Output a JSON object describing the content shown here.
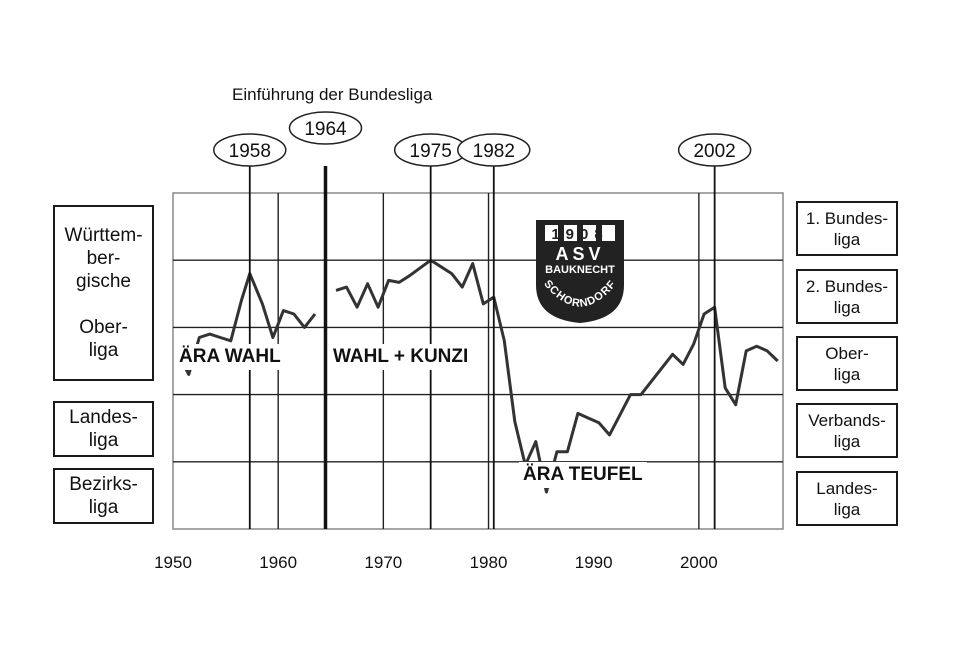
{
  "chart_data": {
    "type": "line",
    "xlim": [
      1950,
      2008
    ],
    "x_ticks": [
      1950,
      1960,
      1970,
      1980,
      1990,
      2000
    ],
    "x_tick_labels": [
      "1950",
      "1960",
      "1970",
      "1980",
      "1990",
      "2000"
    ],
    "grid": true,
    "series": [
      {
        "segments": [
          [
            [
              1950.5,
              2.6
            ],
            [
              1951.5,
              2.3
            ],
            [
              1952.5,
              2.85
            ],
            [
              1953.5,
              2.9
            ],
            [
              1954.5,
              2.85
            ],
            [
              1955.5,
              2.8
            ],
            [
              1956.5,
              3.4
            ],
            [
              1957.3,
              3.8
            ],
            [
              1958.5,
              3.35
            ],
            [
              1959.5,
              2.85
            ],
            [
              1960.5,
              3.25
            ],
            [
              1961.5,
              3.2
            ],
            [
              1962.5,
              3.0
            ],
            [
              1963.5,
              3.2
            ]
          ],
          [
            [
              1965.5,
              3.55
            ],
            [
              1966.5,
              3.6
            ],
            [
              1967.5,
              3.3
            ],
            [
              1968.5,
              3.65
            ],
            [
              1969.5,
              3.3
            ],
            [
              1970.5,
              3.7
            ],
            [
              1971.5,
              3.67
            ],
            [
              1972.5,
              3.77
            ],
            [
              1974.5,
              4.0
            ],
            [
              1976.5,
              3.8
            ],
            [
              1977.5,
              3.6
            ],
            [
              1978.5,
              3.95
            ],
            [
              1979.5,
              3.35
            ],
            [
              1980.5,
              3.45
            ],
            [
              1981.5,
              2.8
            ],
            [
              1982.5,
              1.6
            ],
            [
              1983.5,
              0.95
            ],
            [
              1984.5,
              1.3
            ],
            [
              1985.5,
              0.55
            ],
            [
              1986.5,
              1.15
            ],
            [
              1987.5,
              1.15
            ],
            [
              1988.5,
              1.72
            ],
            [
              1989.5,
              1.65
            ],
            [
              1990.5,
              1.58
            ],
            [
              1991.5,
              1.4
            ],
            [
              1992.5,
              1.7
            ],
            [
              1993.5,
              2.0
            ],
            [
              1994.5,
              2.0
            ],
            [
              1995.5,
              2.2
            ],
            [
              1996.5,
              2.4
            ],
            [
              1997.5,
              2.6
            ],
            [
              1998.5,
              2.45
            ],
            [
              1999.5,
              2.75
            ],
            [
              2000.5,
              3.2
            ],
            [
              2001.5,
              3.3
            ],
            [
              2002.5,
              2.1
            ],
            [
              2003.5,
              1.85
            ],
            [
              2004.5,
              2.65
            ],
            [
              2005.5,
              2.72
            ],
            [
              2006.5,
              2.65
            ],
            [
              2007.5,
              2.5
            ]
          ]
        ]
      }
    ],
    "markers": [
      {
        "year": 1957.3,
        "label": "1958",
        "bold": false
      },
      {
        "year": 1964.5,
        "label": "1964",
        "bold": true
      },
      {
        "year": 1974.5,
        "label": "1975",
        "bold": false
      },
      {
        "year": 1980.5,
        "label": "1982",
        "bold": false
      },
      {
        "year": 2001.5,
        "label": "2002",
        "bold": false
      }
    ],
    "extra_vlines": [
      1960,
      1970,
      1980,
      2000
    ],
    "annotation_top": "Einführung der Bundesliga",
    "eras": [
      {
        "label": "ÄRA WAHL"
      },
      {
        "label": "WAHL + KUNZI"
      },
      {
        "label": "ÄRA TEUFEL"
      }
    ],
    "left_levels": [
      "Württem-\nber-\ngische\n\nOber-\nliga",
      "Landes-\nliga",
      "Bezirks-\nliga"
    ],
    "right_levels": [
      "1. Bundes-\nliga",
      "2. Bundes-\nliga",
      "Ober-\nliga",
      "Verbands-\nliga",
      "Landes-\nliga"
    ]
  },
  "logo": {
    "year": "1908",
    "name": "ASV",
    "line1": "BAUKNECHT",
    "line2": "SCHORNDORF"
  }
}
